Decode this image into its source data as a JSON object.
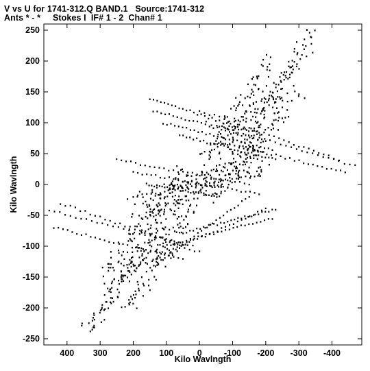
{
  "title_line1": "V vs U for 1741-312.Q BAND.1   Source:1741-312",
  "title_line2": "Ants * - *     Stokes I  IF# 1 - 2  Chan# 1",
  "chart_data": {
    "type": "scatter",
    "xlabel": "Kilo Wavlngth",
    "ylabel": "Kilo Wavlngth",
    "xlim": [
      470,
      -490
    ],
    "ylim": [
      -260,
      260
    ],
    "x_ticks": [
      400,
      300,
      200,
      100,
      0,
      -100,
      -200,
      -300,
      -400
    ],
    "y_ticks": [
      250,
      200,
      150,
      100,
      50,
      0,
      -50,
      -100,
      -150,
      -200,
      -250
    ],
    "marker_color": "#000000",
    "grid": false,
    "description_of_shape": "baseline uv tracks: diagonal band of elongated arcs plus horizontal track families",
    "tracks": [
      {
        "u0": 0,
        "v0": 0,
        "u1": 350,
        "v1": -248
      },
      {
        "u0": 0,
        "v0": 0,
        "u1": -350,
        "v1": 248
      },
      {
        "u0": 20,
        "v0": 10,
        "u1": 340,
        "v1": -232
      },
      {
        "u0": -20,
        "v0": -10,
        "u1": -340,
        "v1": 232
      },
      {
        "u0": 40,
        "v0": 30,
        "u1": 300,
        "v1": -200
      },
      {
        "u0": -40,
        "v0": -30,
        "u1": -300,
        "v1": 200
      },
      {
        "u0": 5,
        "v0": -40,
        "u1": 240,
        "v1": -150
      },
      {
        "u0": -5,
        "v0": 40,
        "u1": -240,
        "v1": 150
      },
      {
        "u0": 60,
        "v0": -80,
        "u1": 220,
        "v1": -200
      },
      {
        "u0": -60,
        "v0": 80,
        "u1": -220,
        "v1": 200
      },
      {
        "u0": 100,
        "v0": -20,
        "u1": 300,
        "v1": -150
      },
      {
        "u0": -100,
        "v0": 20,
        "u1": -300,
        "v1": 150
      }
    ],
    "horizontal_tracks": [
      {
        "u_start": 150,
        "u_end": -160,
        "v_start": 140,
        "v_end": 85
      },
      {
        "u_start": 140,
        "u_end": -200,
        "v_start": 120,
        "v_end": 70
      },
      {
        "u_start": 110,
        "u_end": -220,
        "v_start": 100,
        "v_end": 55
      },
      {
        "u_start": 60,
        "u_end": -230,
        "v_start": 80,
        "v_end": 40
      },
      {
        "u_start": 0,
        "u_end": -420,
        "v_start": 120,
        "v_end": 40
      },
      {
        "u_start": -20,
        "u_end": -470,
        "v_start": 100,
        "v_end": 30
      },
      {
        "u_start": -50,
        "u_end": -440,
        "v_start": 70,
        "v_end": 20
      },
      {
        "u_start": 250,
        "u_end": -150,
        "v_start": 40,
        "v_end": 0
      },
      {
        "u_start": 200,
        "u_end": -180,
        "v_start": 20,
        "v_end": -15
      },
      {
        "u_start": 160,
        "u_end": -60,
        "v_start": 0,
        "v_end": -20
      },
      {
        "u_start": 420,
        "u_end": 0,
        "v_start": -30,
        "v_end": -110
      },
      {
        "u_start": 470,
        "u_end": 20,
        "v_start": -40,
        "v_end": -100
      },
      {
        "u_start": 440,
        "u_end": 50,
        "v_start": -70,
        "v_end": -120
      },
      {
        "u_start": -150,
        "u_end": 160,
        "v_start": -20,
        "v_end": -140
      },
      {
        "u_start": -200,
        "u_end": 140,
        "v_start": -40,
        "v_end": -120
      },
      {
        "u_start": -220,
        "u_end": 110,
        "v_start": -55,
        "v_end": -100
      },
      {
        "u_start": -230,
        "u_end": 60,
        "v_start": -40,
        "v_end": -80
      },
      {
        "u_start": -180,
        "u_end": 200,
        "v_start": 15,
        "v_end": -20
      }
    ]
  }
}
